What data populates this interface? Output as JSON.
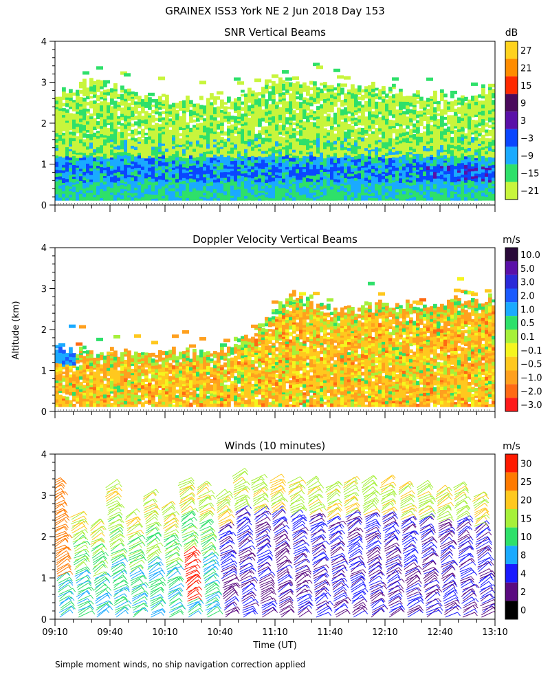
{
  "figure": {
    "title": "GRAINEX ISS3 York NE   2 Jun 2018 Day 153",
    "y_axis_label": "Altitude (km)",
    "x_axis_label": "Time (UT)",
    "footnote": "Simple moment winds, no ship navigation correction applied",
    "time_ticks": [
      "09:10",
      "09:40",
      "10:10",
      "10:40",
      "11:10",
      "11:40",
      "12:10",
      "12:40",
      "13:10"
    ],
    "altitude_ticks": [
      "0",
      "1",
      "2",
      "3",
      "4"
    ],
    "x_range_minutes_utc": [
      550,
      790
    ],
    "y_range_km": [
      0,
      4
    ]
  },
  "chart_data": [
    {
      "type": "heatmap",
      "title": "SNR Vertical Beams",
      "unit": "dB",
      "xlabel": "Time (UT)",
      "ylabel": "Altitude (km)",
      "ylim": [
        0,
        4
      ],
      "colorbar_labels": [
        "27",
        "21",
        "15",
        "9",
        "3",
        "−3",
        "−9",
        "−15",
        "−21"
      ],
      "colorbar_colors": [
        "#ffd21e",
        "#ff8c00",
        "#ff2a00",
        "#4a0a5c",
        "#5a10a8",
        "#0a46ff",
        "#1aaaff",
        "#2ee06a",
        "#c8f53c"
      ],
      "echo_top_km": [
        2.6,
        3.0,
        2.8,
        2.6,
        2.5,
        2.6,
        2.8,
        3.0,
        2.9,
        2.9,
        2.8,
        2.6,
        2.7,
        2.8
      ]
    },
    {
      "type": "heatmap",
      "title": "Doppler Velocity Vertical Beams",
      "unit": "m/s",
      "xlabel": "Time (UT)",
      "ylabel": "Altitude (km)",
      "ylim": [
        0,
        4
      ],
      "colorbar_labels": [
        "10.0",
        "5.0",
        "3.0",
        "2.0",
        "1.0",
        "0.5",
        "0.1",
        "−0.1",
        "−0.5",
        "−1.0",
        "−2.0",
        "−3.0"
      ],
      "colorbar_colors": [
        "#2a0a3a",
        "#5a10a8",
        "#2a2ad8",
        "#1a5aff",
        "#1aaaff",
        "#2ee06a",
        "#a6f03a",
        "#f5f51e",
        "#ffc81e",
        "#ffa01e",
        "#ff6a14",
        "#ff1a1a"
      ],
      "echo_top_km": [
        1.5,
        1.4,
        1.4,
        1.4,
        1.4,
        1.5,
        2.0,
        2.9,
        2.5,
        2.5,
        2.6,
        2.5,
        2.7,
        2.7
      ]
    },
    {
      "type": "scatter",
      "title": "Winds (10 minutes)",
      "unit": "m/s",
      "xlabel": "Time (UT)",
      "ylabel": "Altitude (km)",
      "ylim": [
        0,
        4
      ],
      "colorbar_labels": [
        "30",
        "25",
        "20",
        "15",
        "10",
        "8",
        "4",
        "2",
        "0"
      ],
      "colorbar_colors": [
        "#ff1a00",
        "#ff7a00",
        "#ffc81e",
        "#a6f03a",
        "#2ee06a",
        "#1aaaff",
        "#1a1aff",
        "#5a0a80",
        "#000000"
      ],
      "profile_times_utc": [
        "09:10",
        "09:20",
        "09:30",
        "09:40",
        "09:50",
        "10:00",
        "10:10",
        "10:20",
        "10:30",
        "10:40",
        "10:50",
        "11:00",
        "11:10",
        "11:20",
        "11:30",
        "11:40",
        "11:50",
        "12:00",
        "12:10",
        "12:20",
        "12:30",
        "12:40",
        "12:50",
        "13:00"
      ],
      "profile_top_km": [
        3.3,
        2.5,
        2.3,
        3.2,
        2.5,
        3.0,
        2.7,
        3.3,
        3.2,
        3.0,
        3.5,
        3.4,
        3.4,
        3.3,
        3.3,
        3.2,
        3.3,
        3.3,
        3.3,
        3.2,
        3.2,
        3.1,
        3.2,
        3.0
      ]
    }
  ]
}
